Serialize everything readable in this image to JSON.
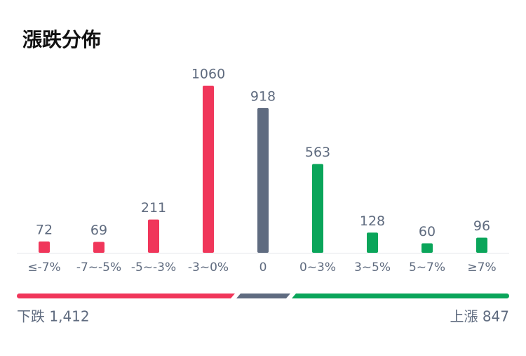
{
  "chart_data": {
    "type": "bar",
    "title": "漲跌分佈",
    "categories": [
      "≤-7%",
      "-7~-5%",
      "-5~-3%",
      "-3~0%",
      "0",
      "0~3%",
      "3~5%",
      "5~7%",
      "≥7%"
    ],
    "values": [
      72,
      69,
      211,
      1060,
      918,
      563,
      128,
      60,
      96
    ],
    "colors": [
      "#f0365a",
      "#f0365a",
      "#f0365a",
      "#f0365a",
      "#5f6b80",
      "#0aa55a",
      "#0aa55a",
      "#0aa55a",
      "#0aa55a"
    ]
  },
  "summary": {
    "down": "下跌 1,412",
    "up": "上漲 847"
  }
}
